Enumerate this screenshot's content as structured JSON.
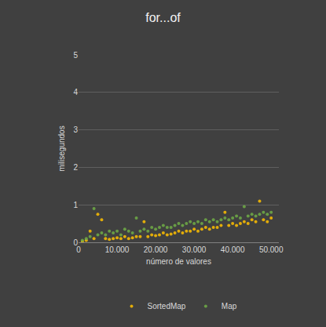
{
  "chart_data": {
    "type": "scatter",
    "title": "for...of",
    "x_label": "número de valores",
    "y_label": "milisegundos",
    "x": [
      1000,
      2000,
      3000,
      4000,
      5000,
      6000,
      7000,
      8000,
      9000,
      10000,
      11000,
      12000,
      13000,
      14000,
      15000,
      16000,
      17000,
      18000,
      19000,
      20000,
      21000,
      22000,
      23000,
      24000,
      25000,
      26000,
      27000,
      28000,
      29000,
      30000,
      31000,
      32000,
      33000,
      34000,
      35000,
      36000,
      37000,
      38000,
      39000,
      40000,
      41000,
      42000,
      43000,
      44000,
      45000,
      46000,
      47000,
      48000,
      49000,
      50000
    ],
    "series": [
      {
        "name": "SortedMap",
        "color": "#ffc000",
        "marker": "circle",
        "values": [
          0.02,
          0.05,
          0.3,
          0.1,
          0.75,
          0.6,
          0.1,
          0.08,
          0.1,
          0.12,
          0.1,
          0.15,
          0.1,
          0.12,
          0.15,
          0.15,
          0.55,
          0.15,
          0.2,
          0.18,
          0.2,
          0.25,
          0.2,
          0.22,
          0.25,
          0.3,
          0.25,
          0.3,
          0.3,
          0.35,
          0.3,
          0.35,
          0.4,
          0.35,
          0.4,
          0.4,
          0.45,
          0.8,
          0.45,
          0.5,
          0.45,
          0.5,
          0.55,
          0.5,
          0.6,
          0.55,
          1.1,
          0.6,
          0.55,
          0.65
        ]
      },
      {
        "name": "Map",
        "color": "#70ad47",
        "marker": "circle",
        "values": [
          0.05,
          0.1,
          0.15,
          0.9,
          0.2,
          0.25,
          0.2,
          0.3,
          0.25,
          0.3,
          0.2,
          0.35,
          0.3,
          0.25,
          0.65,
          0.3,
          0.35,
          0.3,
          0.4,
          0.35,
          0.4,
          0.45,
          0.4,
          0.4,
          0.45,
          0.5,
          0.45,
          0.5,
          0.55,
          0.5,
          0.55,
          0.5,
          0.6,
          0.55,
          0.6,
          0.55,
          0.6,
          0.65,
          0.6,
          0.65,
          0.7,
          0.65,
          0.95,
          0.7,
          0.75,
          0.7,
          0.75,
          0.8,
          0.75,
          0.8
        ]
      }
    ],
    "xlim": [
      0,
      52000
    ],
    "xticks": [
      0,
      {
        "value": 10000,
        "label": "10.000"
      },
      {
        "value": 20000,
        "label": "20.000"
      },
      {
        "value": 30000,
        "label": "30.000"
      },
      {
        "value": 40000,
        "label": "40.000"
      },
      {
        "value": 50000,
        "label": "50.000"
      }
    ],
    "ylim": [
      0,
      5
    ],
    "yticks": [
      0,
      1,
      2,
      3,
      4,
      5
    ],
    "grid": true,
    "legend": "bottom"
  }
}
